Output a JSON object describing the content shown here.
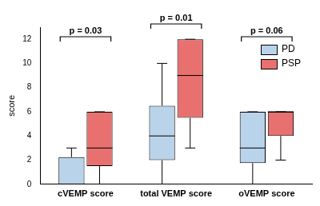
{
  "chart_data": {
    "type": "boxplot",
    "categories": [
      "cVEMP score",
      "total VEMP score",
      "oVEMP score"
    ],
    "y_label": "score",
    "ylim": [
      0,
      13
    ],
    "yticks": [
      0,
      2,
      4,
      6,
      8,
      10,
      12
    ],
    "grid": false,
    "legend": "upper right",
    "series": [
      {
        "name": "PD",
        "color": "#b9d3ea",
        "min": [
          0,
          0,
          0
        ],
        "q1": [
          0,
          2,
          1.75
        ],
        "median": [
          0,
          4,
          3
        ],
        "q3": [
          2.25,
          6.5,
          6
        ],
        "max": [
          3,
          10,
          6
        ]
      },
      {
        "name": "PSP",
        "color": "#e8716f",
        "min": [
          0,
          3,
          2
        ],
        "q1": [
          1.5,
          5.5,
          4
        ],
        "median": [
          3,
          9,
          6
        ],
        "q3": [
          6,
          12,
          6
        ],
        "max": [
          6,
          12,
          6
        ]
      }
    ],
    "annotations": [
      {
        "text": "p = 0.03",
        "category": "cVEMP score"
      },
      {
        "text": "p = 0.01",
        "category": "total VEMP score"
      },
      {
        "text": "p = 0.06",
        "category": "oVEMP score"
      }
    ]
  }
}
